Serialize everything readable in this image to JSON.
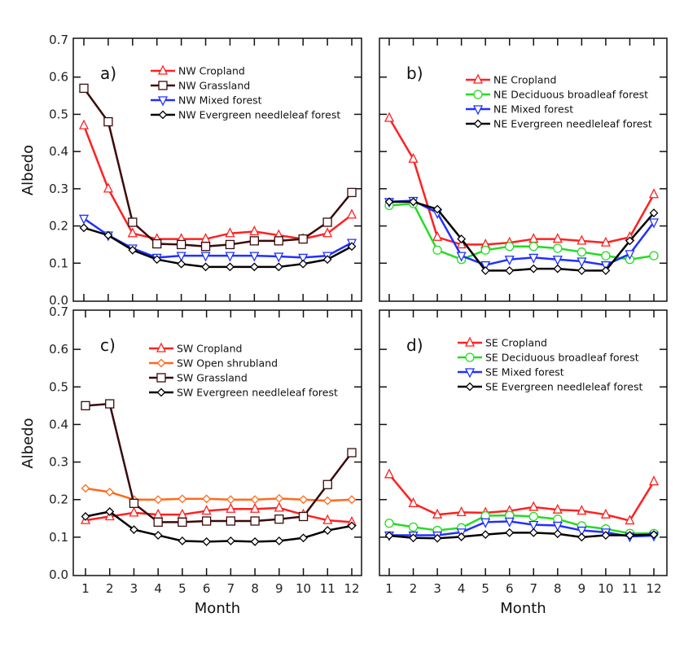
{
  "chart_data": [
    {
      "type": "line",
      "panel_label": "a)",
      "xlabel": "",
      "ylabel": "Albedo",
      "ylim": [
        0,
        0.7
      ],
      "yticks": [
        "0.0",
        "0.1",
        "0.2",
        "0.3",
        "0.4",
        "0.5",
        "0.6",
        "0.7"
      ],
      "x": [
        1,
        2,
        3,
        4,
        5,
        6,
        7,
        8,
        9,
        10,
        11,
        12
      ],
      "legend": "top-right",
      "series": [
        {
          "name": "NW Cropland",
          "color": "#ff2020",
          "marker": "triangle-up",
          "values": [
            0.47,
            0.3,
            0.18,
            0.165,
            0.165,
            0.165,
            0.18,
            0.185,
            0.175,
            0.165,
            0.18,
            0.23
          ]
        },
        {
          "name": "NW Grassland",
          "color": "#3a0a0a",
          "marker": "square",
          "values": [
            0.57,
            0.48,
            0.21,
            0.152,
            0.15,
            0.145,
            0.15,
            0.16,
            0.16,
            0.165,
            0.21,
            0.29
          ]
        },
        {
          "name": "NW Mixed forest",
          "color": "#2030ff",
          "marker": "triangle-down",
          "values": [
            0.22,
            0.175,
            0.14,
            0.115,
            0.12,
            0.12,
            0.12,
            0.12,
            0.118,
            0.115,
            0.12,
            0.155
          ]
        },
        {
          "name": "NW Evergreen needleleaf forest",
          "color": "#000000",
          "marker": "diamond",
          "values": [
            0.195,
            0.175,
            0.135,
            0.11,
            0.098,
            0.09,
            0.09,
            0.09,
            0.09,
            0.098,
            0.11,
            0.145
          ]
        }
      ]
    },
    {
      "type": "line",
      "panel_label": "b)",
      "xlabel": "",
      "ylabel": "",
      "ylim": [
        0,
        0.7
      ],
      "x": [
        1,
        2,
        3,
        4,
        5,
        6,
        7,
        8,
        9,
        10,
        11,
        12
      ],
      "legend": "top-right",
      "series": [
        {
          "name": "NE Cropland",
          "color": "#ff2020",
          "marker": "triangle-up",
          "values": [
            0.49,
            0.38,
            0.17,
            0.15,
            0.15,
            0.155,
            0.165,
            0.165,
            0.16,
            0.155,
            0.17,
            0.285
          ]
        },
        {
          "name": "NE Deciduous broadleaf forest",
          "color": "#22dd22",
          "marker": "circle",
          "values": [
            0.255,
            0.26,
            0.135,
            0.11,
            0.135,
            0.145,
            0.145,
            0.14,
            0.13,
            0.12,
            0.11,
            0.12
          ]
        },
        {
          "name": "NE Mixed forest",
          "color": "#2030ff",
          "marker": "triangle-down",
          "values": [
            0.265,
            0.268,
            0.235,
            0.12,
            0.095,
            0.11,
            0.115,
            0.11,
            0.105,
            0.095,
            0.125,
            0.21
          ]
        },
        {
          "name": "NE Evergreen needleleaf forest",
          "color": "#000000",
          "marker": "diamond",
          "values": [
            0.265,
            0.265,
            0.245,
            0.165,
            0.08,
            0.08,
            0.085,
            0.085,
            0.08,
            0.08,
            0.16,
            0.235
          ]
        }
      ]
    },
    {
      "type": "line",
      "panel_label": "c)",
      "xlabel": "Month",
      "ylabel": "Albedo",
      "ylim": [
        0,
        0.7
      ],
      "yticks": [
        "0.0",
        "0.1",
        "0.2",
        "0.3",
        "0.4",
        "0.5",
        "0.6",
        "0.7"
      ],
      "x": [
        1,
        2,
        3,
        4,
        5,
        6,
        7,
        8,
        9,
        10,
        11,
        12
      ],
      "xticks": [
        "1",
        "2",
        "3",
        "4",
        "5",
        "6",
        "7",
        "8",
        "9",
        "10",
        "11",
        "12"
      ],
      "legend": "top-right",
      "series": [
        {
          "name": "SW Cropland",
          "color": "#ff2020",
          "marker": "triangle-up",
          "values": [
            0.145,
            0.155,
            0.165,
            0.16,
            0.16,
            0.17,
            0.175,
            0.175,
            0.178,
            0.16,
            0.145,
            0.14
          ]
        },
        {
          "name": "SW Open shrubland",
          "color": "#ff6a1a",
          "marker": "diamond",
          "values": [
            0.23,
            0.22,
            0.2,
            0.2,
            0.202,
            0.202,
            0.2,
            0.2,
            0.203,
            0.2,
            0.197,
            0.2
          ]
        },
        {
          "name": "SW Grassland",
          "color": "#3a0a0a",
          "marker": "square",
          "values": [
            0.45,
            0.455,
            0.19,
            0.14,
            0.14,
            0.143,
            0.143,
            0.143,
            0.148,
            0.155,
            0.24,
            0.325
          ]
        },
        {
          "name": "SW Evergreen needleleaf forest",
          "color": "#000000",
          "marker": "diamond",
          "values": [
            0.155,
            0.168,
            0.12,
            0.105,
            0.09,
            0.088,
            0.09,
            0.088,
            0.09,
            0.098,
            0.118,
            0.13
          ]
        }
      ]
    },
    {
      "type": "line",
      "panel_label": "d)",
      "xlabel": "Month",
      "ylabel": "",
      "ylim": [
        0,
        0.7
      ],
      "x": [
        1,
        2,
        3,
        4,
        5,
        6,
        7,
        8,
        9,
        10,
        11,
        12
      ],
      "xticks": [
        "1",
        "2",
        "3",
        "4",
        "5",
        "6",
        "7",
        "8",
        "9",
        "10",
        "11",
        "12"
      ],
      "legend": "top-right",
      "series": [
        {
          "name": "SE Cropland",
          "color": "#ff2020",
          "marker": "triangle-up",
          "values": [
            0.267,
            0.19,
            0.16,
            0.166,
            0.165,
            0.17,
            0.18,
            0.173,
            0.17,
            0.16,
            0.144,
            0.248
          ]
        },
        {
          "name": "SE Deciduous broadleaf forest",
          "color": "#22dd22",
          "marker": "circle",
          "values": [
            0.137,
            0.127,
            0.118,
            0.125,
            0.157,
            0.158,
            0.155,
            0.148,
            0.13,
            0.122,
            0.11,
            0.11
          ]
        },
        {
          "name": "SE Mixed forest",
          "color": "#2030ff",
          "marker": "triangle-down",
          "values": [
            0.105,
            0.105,
            0.105,
            0.113,
            0.14,
            0.142,
            0.133,
            0.131,
            0.118,
            0.113,
            0.102,
            0.104
          ]
        },
        {
          "name": "SE Evergreen needleleaf forest",
          "color": "#000000",
          "marker": "diamond",
          "values": [
            0.104,
            0.098,
            0.097,
            0.101,
            0.107,
            0.112,
            0.112,
            0.109,
            0.1,
            0.105,
            0.105,
            0.107
          ]
        }
      ]
    }
  ]
}
